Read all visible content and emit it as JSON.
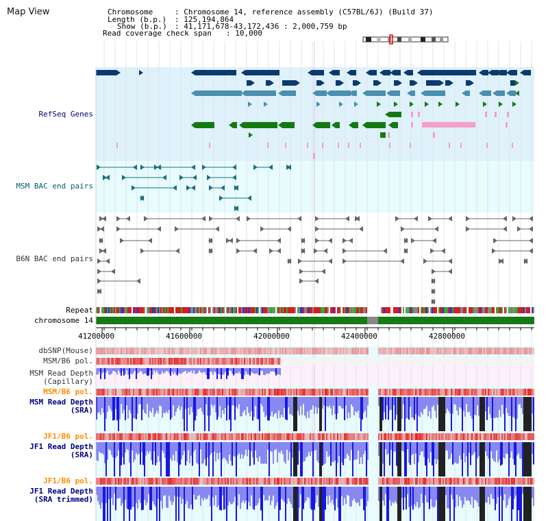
{
  "title": "Map View",
  "header": {
    "chromosome_label": "Chromosome",
    "chromosome_value": ": Chromosome 14, reference assembly (C57BL/6J) (Build 37)",
    "length_label": "Length (b.p.)",
    "length_value": ": 125,194,864",
    "show_label": "Show (b.p.)",
    "show_value": ": 41,171,678-43,172,436 : 2,000,759 bp",
    "read_cov_label": "Read coverage check span",
    "read_cov_value": ": 10,000"
  },
  "tracks": {
    "refseq": "RefSeq Genes",
    "msm_bac": "MSM BAC end pairs",
    "b6n_bac": "B6N BAC end pairs",
    "repeat": "Repeat",
    "chromosome": "chromosome 14",
    "dbsnp": "dbSNP(Mouse)",
    "msm_b6_pol_1": "MSM/B6 pol.",
    "msm_rd_cap_1": "MSM Read Depth",
    "msm_rd_cap_2": "(Capillary)",
    "msm_b6_pol_2": "MSM/B6 pol.",
    "msm_rd_sra_1": "MSM Read Depth",
    "msm_rd_sra_2": "(SRA)",
    "jf1_b6_pol_1": "JF1/B6 pol.",
    "jf1_rd_sra_1": "JF1 Read Depth",
    "jf1_rd_sra_2": "(SRA)",
    "jf1_b6_pol_2": "JF1/B6 pol.",
    "jf1_rd_tr_1": "JF1 Read Depth",
    "jf1_rd_tr_2": "(SRA trimmed)"
  },
  "ruler": {
    "ticks": [
      "41200000",
      "41600000",
      "42000000",
      "42400000",
      "42800000"
    ],
    "tick_values": [
      41200000,
      41600000,
      42000000,
      42400000,
      42800000
    ],
    "start_bp": 41171678,
    "end_bp": 43172436
  },
  "colors": {
    "refseq_bg": "#dff2fb",
    "msm_bac_bg": "#e8fbfd",
    "gene_navy": "#0b3a6e",
    "gene_steel": "#4a8fb0",
    "gene_green": "#137a13",
    "gene_pink": "#f4a0c8",
    "bac_teal": "#1a6e80",
    "bac_gray": "#666666",
    "chrom_green": "#167a16",
    "gap_gray": "#888888",
    "snp_red": "#e84040",
    "depth_blue": "#3030e0",
    "depth_black": "#222222",
    "label_navy": "#000080",
    "label_teal": "#006070",
    "label_orange": "#ff8c00"
  }
}
